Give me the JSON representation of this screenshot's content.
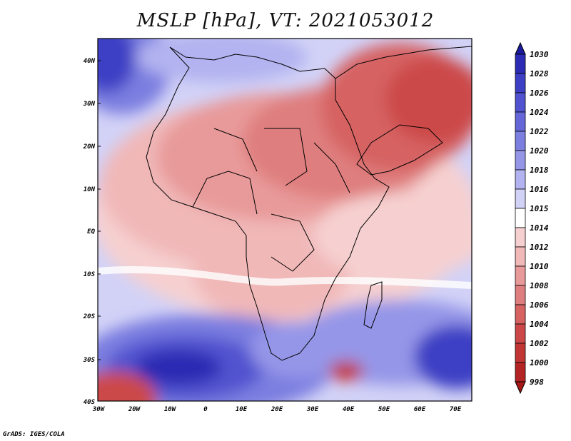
{
  "title": "MSLP [hPa], VT: 2021053012",
  "credit": "GrADS: IGES/COLA",
  "map": {
    "lat_labels": [
      "40N",
      "30N",
      "20N",
      "10N",
      "EQ",
      "10S",
      "20S",
      "30S",
      "40S"
    ],
    "lon_labels": [
      "30W",
      "20W",
      "10W",
      "0",
      "10E",
      "20E",
      "30E",
      "40E",
      "50E",
      "60E",
      "70E"
    ]
  },
  "colorbar": {
    "levels": [
      "1030",
      "1028",
      "1026",
      "1024",
      "1022",
      "1020",
      "1018",
      "1016",
      "1015",
      "1014",
      "1012",
      "1010",
      "1008",
      "1006",
      "1004",
      "1002",
      "1000",
      "998"
    ],
    "colors": [
      "#1c1a9c",
      "#2b2bb3",
      "#3d3fc4",
      "#5152cf",
      "#6567d8",
      "#7c7ee0",
      "#9596e8",
      "#b2b3f0",
      "#d2d2f7",
      "#ffffff",
      "#f6d0d0",
      "#f1b8b8",
      "#e89a9a",
      "#df7e7e",
      "#d66262",
      "#cc4848",
      "#c23535",
      "#b42424",
      "#a51616"
    ]
  }
}
